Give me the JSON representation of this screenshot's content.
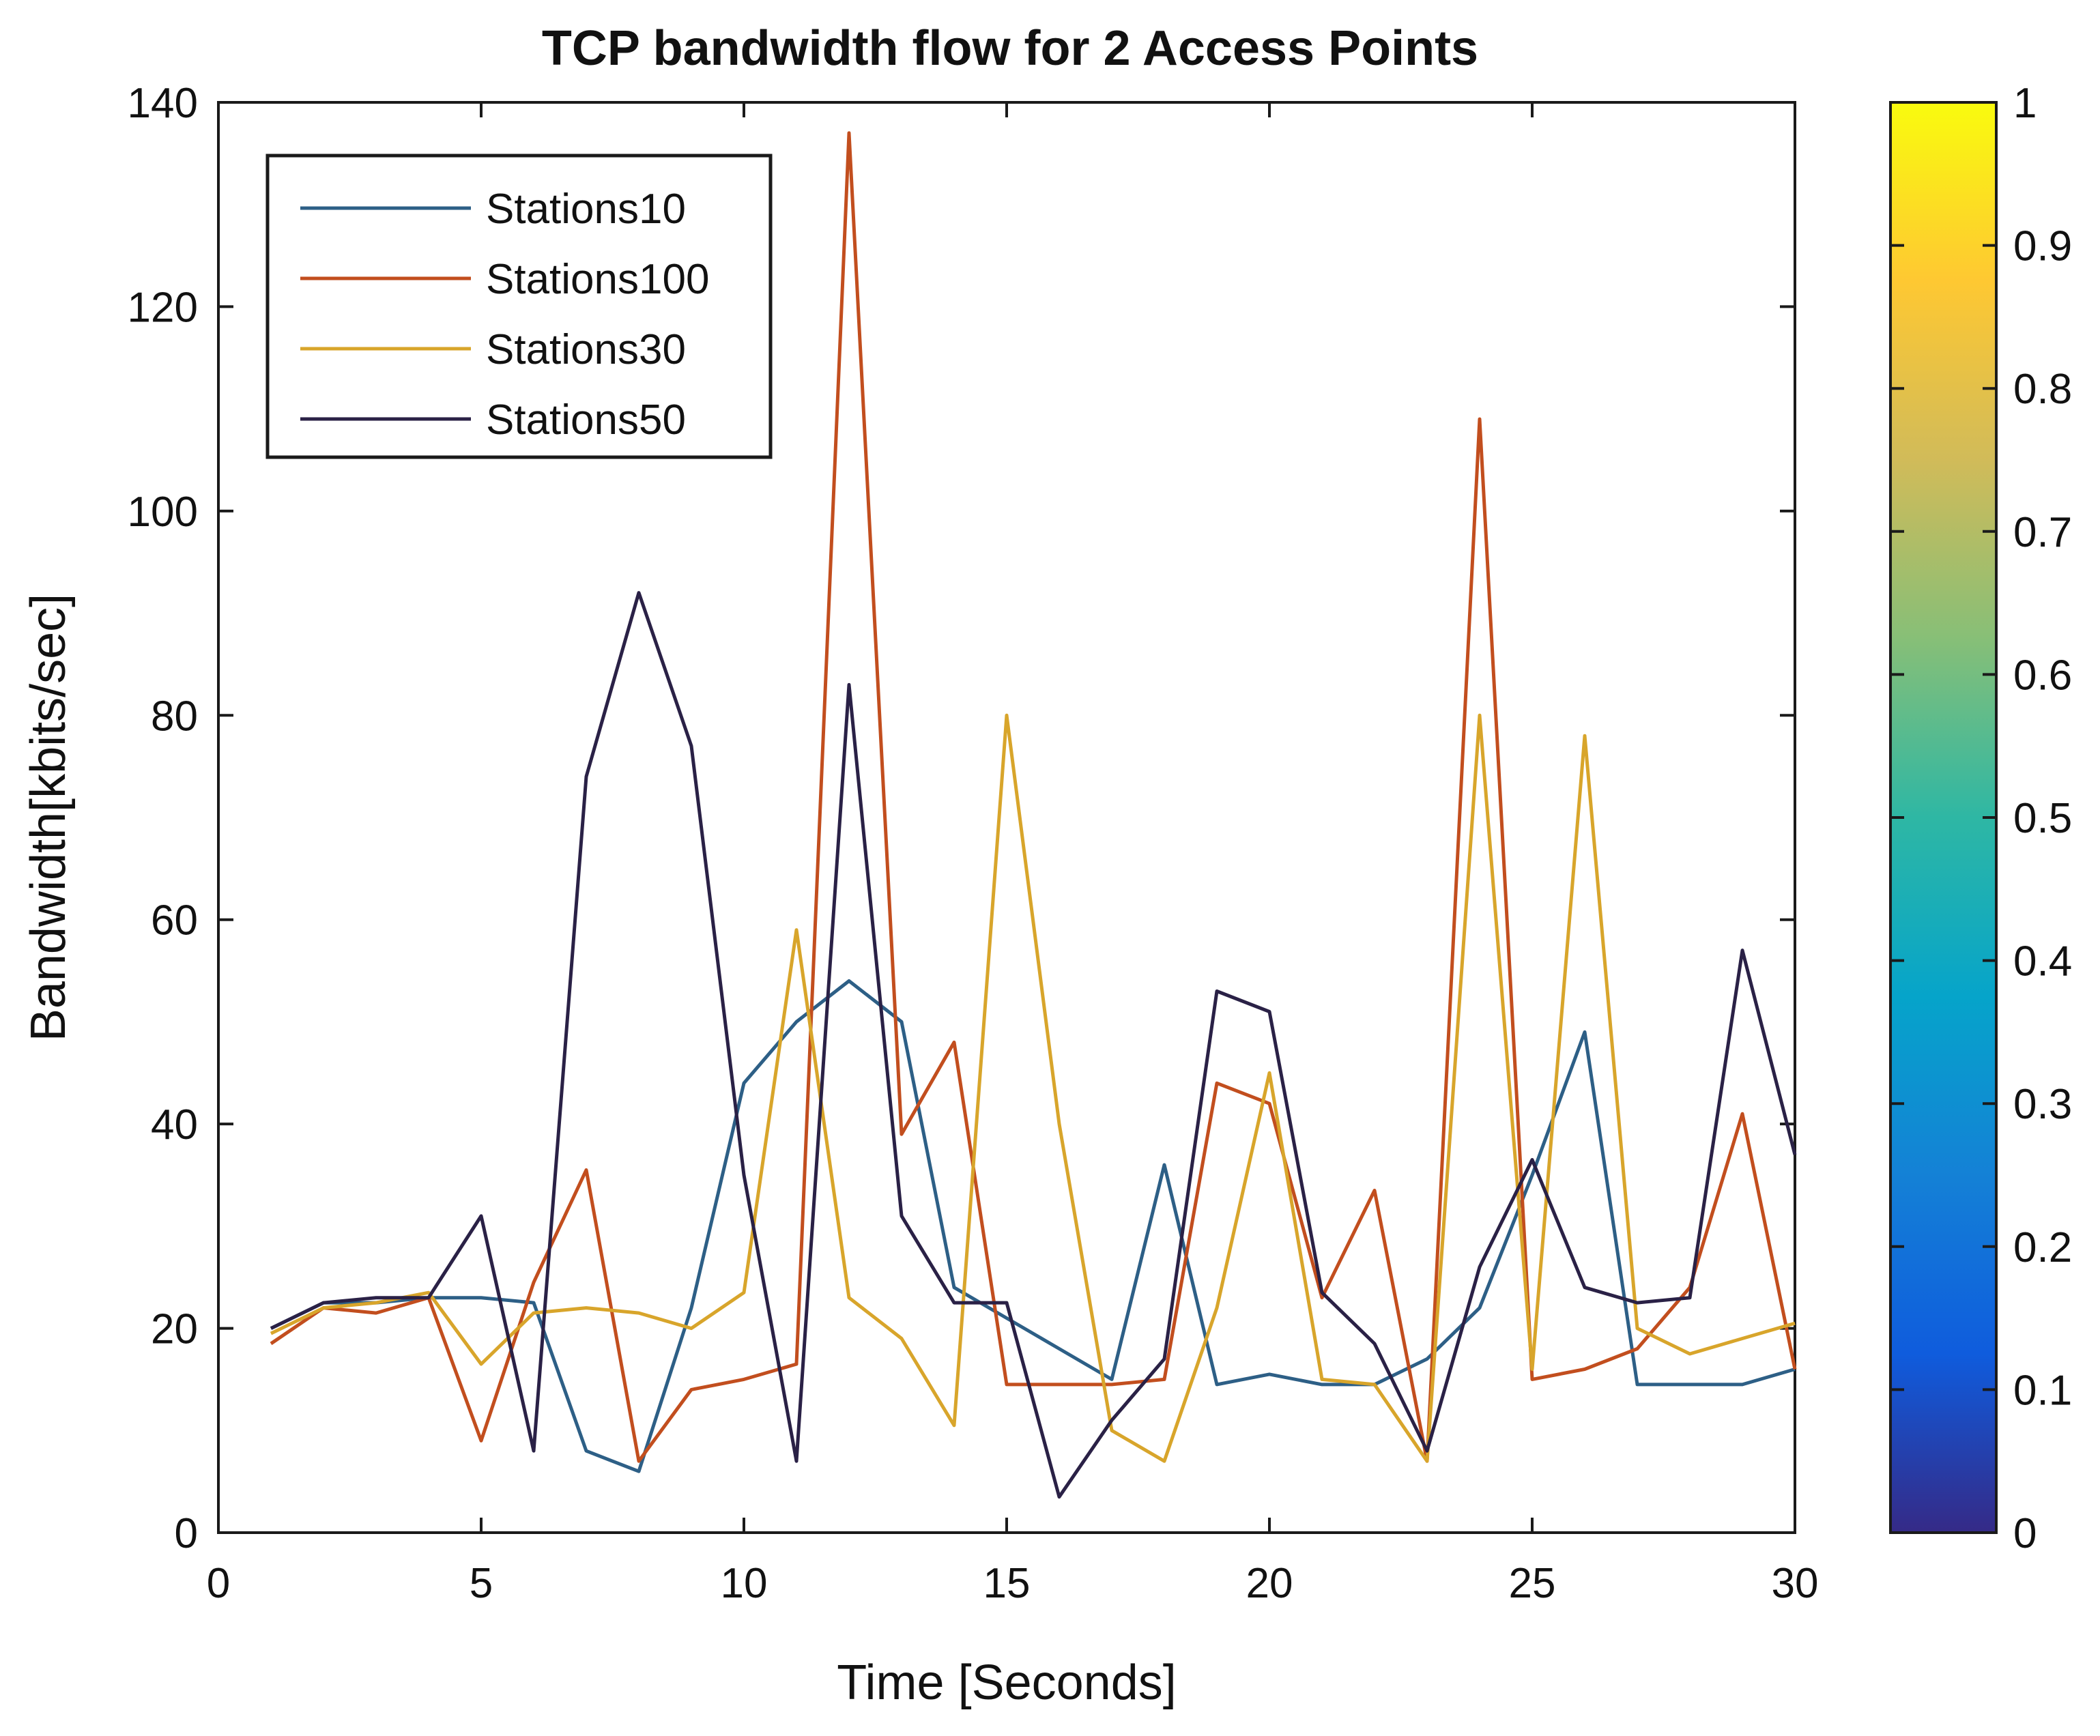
{
  "chart_data": {
    "type": "line",
    "title": "TCP bandwidth flow for 2 Access Points",
    "xlabel": "Time [Seconds]",
    "ylabel": "Bandwidth[kbits/sec]",
    "xlim": [
      0,
      30
    ],
    "ylim": [
      0,
      140
    ],
    "xticks": [
      0,
      5,
      10,
      15,
      20,
      25,
      30
    ],
    "yticks": [
      0,
      20,
      40,
      60,
      80,
      100,
      120,
      140
    ],
    "grid": false,
    "legend_position": "top-left",
    "x": [
      1,
      2,
      3,
      4,
      5,
      6,
      7,
      8,
      9,
      10,
      11,
      12,
      13,
      14,
      15,
      16,
      17,
      18,
      19,
      20,
      21,
      22,
      23,
      24,
      25,
      26,
      27,
      28,
      29,
      30
    ],
    "series": [
      {
        "name": "Stations10",
        "color": "#2d5f86",
        "values": [
          20,
          22.5,
          22.5,
          23,
          23,
          22.5,
          8,
          6,
          22,
          44,
          50,
          54,
          50,
          24,
          21,
          18,
          15,
          36,
          14.5,
          15.5,
          14.5,
          14.5,
          17,
          22,
          35,
          49,
          14.5,
          14.5,
          14.5,
          16
        ]
      },
      {
        "name": "Stations100",
        "color": "#c24e1e",
        "values": [
          18.5,
          22,
          21.5,
          23,
          9,
          24.5,
          35.5,
          7,
          14,
          15,
          16.5,
          137,
          39,
          48,
          14.5,
          14.5,
          14.5,
          15,
          44,
          42,
          23,
          33.5,
          7,
          109,
          15,
          16,
          18,
          24,
          41,
          16
        ]
      },
      {
        "name": "Stations30",
        "color": "#d8a52b",
        "values": [
          19.5,
          22,
          22.5,
          23.5,
          16.5,
          21.5,
          22,
          21.5,
          20,
          23.5,
          59,
          23,
          19,
          10.5,
          80,
          40,
          10,
          7,
          22,
          45,
          15,
          14.5,
          7,
          80,
          16,
          78,
          20,
          17.5,
          19,
          20.5
        ]
      },
      {
        "name": "Stations50",
        "color": "#2a2146",
        "values": [
          20,
          22.5,
          23,
          23,
          31,
          8,
          74,
          92,
          77,
          35,
          7,
          83,
          31,
          22.5,
          22.5,
          3.5,
          11,
          17,
          53,
          51,
          23.5,
          18.5,
          8,
          26,
          36.5,
          24,
          22.5,
          23,
          57,
          37
        ]
      }
    ],
    "colorbar": {
      "ticks": [
        "0",
        "0.1",
        "0.2",
        "0.3",
        "0.4",
        "0.5",
        "0.6",
        "0.7",
        "0.8",
        "0.9",
        "1"
      ],
      "colors": [
        "#352a87",
        "#0f5cdd",
        "#1481d6",
        "#06a4ca",
        "#2eb7a4",
        "#87bf77",
        "#d1bb59",
        "#fec832",
        "#f9fb0e"
      ]
    }
  }
}
